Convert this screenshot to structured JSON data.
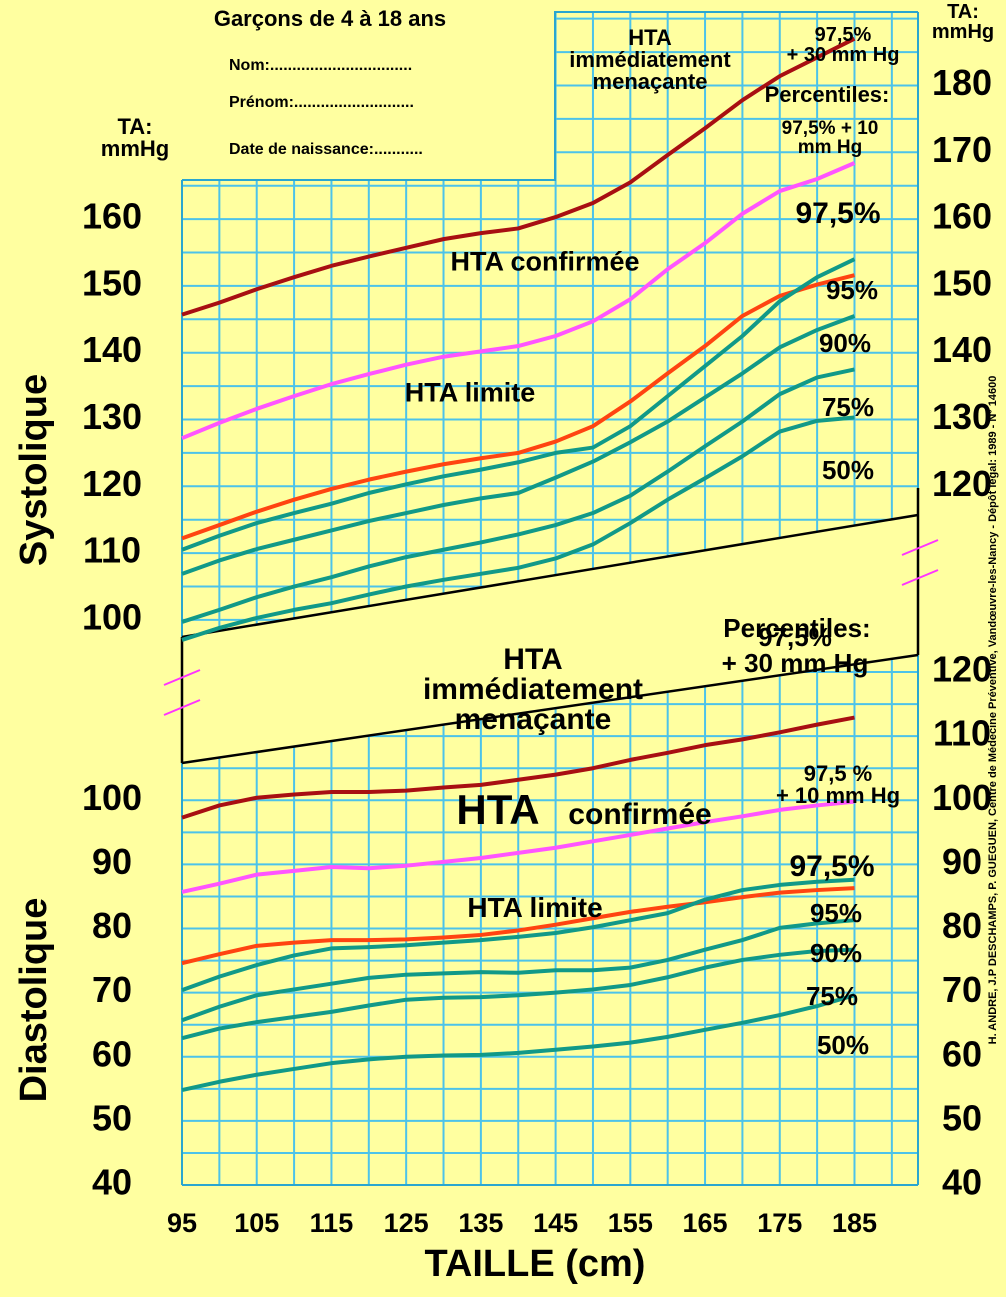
{
  "header": {
    "title": "Garçons de 4 à 18 ans",
    "fields": [
      "Nom:................................",
      "Prénom:...........................",
      "Date de naissance:..........."
    ]
  },
  "credit": "H. ANDRE, J.P DESCHAMPS, P. GUEGUEN, Centre de Médecine Préventive, Vandœuvre-les-Nancy - Dépôt légal: 1989 - N° 14600",
  "chart_data": [
    {
      "type": "line",
      "ylabel": "Systolique",
      "y_unit_label": "TA:\nmmHg",
      "y2_unit_label": "TA:\nmmHg",
      "legend_title": "Percentiles:",
      "annotations": [
        "HTA\nimmédiatement\nmenaçante",
        "HTA confirmée",
        "HTA limite"
      ],
      "x": [
        95,
        100,
        105,
        110,
        115,
        120,
        125,
        130,
        135,
        140,
        145,
        150,
        155,
        160,
        165,
        170,
        175,
        180,
        185
      ],
      "xlim": [
        95,
        193.5
      ],
      "xgrid": [
        95,
        100,
        105,
        110,
        115,
        120,
        125,
        130,
        135,
        140,
        145,
        150,
        155,
        160,
        165,
        170,
        175,
        180,
        185,
        190
      ],
      "ylim": [
        94,
        191
      ],
      "yticks": [
        100,
        110,
        120,
        130,
        140,
        150,
        160
      ],
      "y2lim": [
        94,
        191
      ],
      "y2ticks": [
        120,
        130,
        140,
        150,
        160,
        170,
        180
      ],
      "ygrid": [
        95,
        100,
        105,
        110,
        115,
        120,
        125,
        130,
        135,
        140,
        145,
        150,
        155,
        160,
        165,
        170,
        175,
        180,
        185,
        190
      ],
      "grid": true,
      "series": [
        {
          "name": "97,5%\n+ 30 mm Hg",
          "color": "#a80f12",
          "values": [
            145.7,
            147.5,
            149.5,
            151.3,
            153,
            154.4,
            155.7,
            157,
            157.9,
            158.6,
            160.3,
            162.4,
            165.5,
            169.6,
            173.6,
            177.8,
            181.4,
            184.2,
            187
          ]
        },
        {
          "name": "97,5% + 10\nmm Hg",
          "color": "#ff55ff",
          "values": [
            127.2,
            129.5,
            131.6,
            133.5,
            135.3,
            136.8,
            138.2,
            139.4,
            140.2,
            141,
            142.5,
            144.7,
            148,
            152.5,
            156.4,
            160.8,
            164.2,
            166,
            168.4
          ]
        },
        {
          "name": "97,5%",
          "color": "#ff4411",
          "values": [
            112.2,
            114.2,
            116.2,
            118,
            119.6,
            121,
            122.2,
            123.3,
            124.2,
            125,
            126.7,
            129,
            132.7,
            136.9,
            141,
            145.5,
            148.5,
            150.2,
            151.6
          ]
        },
        {
          "name": "95%",
          "color": "#119988",
          "values": [
            110.5,
            112.6,
            114.5,
            116,
            117.4,
            119,
            120.3,
            121.5,
            122.5,
            123.6,
            125,
            125.8,
            129,
            133.5,
            138,
            142.5,
            147.7,
            151.3,
            154
          ]
        },
        {
          "name": "90%",
          "color": "#119988",
          "values": [
            106.9,
            108.9,
            110.6,
            112,
            113.4,
            114.8,
            116,
            117.2,
            118.2,
            119,
            121.3,
            123.7,
            126.6,
            129.7,
            133.3,
            136.9,
            140.8,
            143.4,
            145.5
          ]
        },
        {
          "name": "75%",
          "color": "#119988",
          "values": [
            99.7,
            101.5,
            103.4,
            105,
            106.4,
            108,
            109.4,
            110.5,
            111.6,
            112.8,
            114.2,
            116,
            118.6,
            122.2,
            126,
            129.7,
            133.8,
            136.3,
            137.5
          ]
        },
        {
          "name": "50%",
          "color": "#119988",
          "values": [
            97,
            98.8,
            100.3,
            101.5,
            102.5,
            103.8,
            105,
            106,
            106.9,
            107.8,
            109.2,
            111.3,
            114.5,
            118,
            121.2,
            124.5,
            128.2,
            129.8,
            130.3
          ]
        }
      ]
    },
    {
      "type": "line",
      "ylabel": "Diastolique",
      "xlabel": "TAILLE (cm)",
      "legend_title": "Percentiles:",
      "annotations": [
        "HTA\nimmédiatement\nmenaçante",
        "HTA",
        "confirmée",
        "HTA limite"
      ],
      "x": [
        95,
        100,
        105,
        110,
        115,
        120,
        125,
        130,
        135,
        140,
        145,
        150,
        155,
        160,
        165,
        170,
        175,
        180,
        185
      ],
      "xlim": [
        95,
        193.5
      ],
      "xticks": [
        95,
        105,
        115,
        125,
        135,
        145,
        155,
        165,
        175,
        185
      ],
      "xgrid": [
        95,
        100,
        105,
        110,
        115,
        120,
        125,
        130,
        135,
        140,
        145,
        150,
        155,
        160,
        165,
        170,
        175,
        180,
        185,
        190
      ],
      "ylim": [
        40,
        125
      ],
      "yticks": [
        40,
        50,
        60,
        70,
        80,
        90,
        100
      ],
      "y2lim": [
        40,
        125
      ],
      "y2ticks": [
        40,
        50,
        60,
        70,
        80,
        90,
        100,
        110,
        120
      ],
      "ygrid": [
        40,
        45,
        50,
        55,
        60,
        65,
        70,
        75,
        80,
        85,
        90,
        95,
        100,
        105,
        110,
        115,
        120
      ],
      "grid": true,
      "series": [
        {
          "name": "97,5%\n+ 30 mm Hg",
          "color": "#a80f12",
          "values": [
            97.3,
            99.2,
            100.4,
            100.9,
            101.3,
            101.3,
            101.5,
            102,
            102.4,
            103.2,
            104,
            105,
            106.3,
            107.4,
            108.6,
            109.5,
            110.6,
            111.8,
            112.9
          ]
        },
        {
          "name": "97,5 %\n+ 10 mm Hg",
          "color": "#ff55ff",
          "values": [
            85.7,
            87,
            88.4,
            89,
            89.6,
            89.4,
            89.8,
            90.4,
            91,
            91.8,
            92.6,
            93.6,
            94.6,
            95.6,
            96.6,
            97.5,
            98.5,
            99.2,
            99.8
          ]
        },
        {
          "name": "97,5%",
          "color": "#ff4411",
          "values": [
            74.6,
            76,
            77.3,
            77.8,
            78.2,
            78.2,
            78.3,
            78.6,
            79,
            79.7,
            80.6,
            81.6,
            82.6,
            83.4,
            84.1,
            84.9,
            85.6,
            86,
            86.3
          ]
        },
        {
          "name": "95%",
          "color": "#119988",
          "values": [
            70.4,
            72.5,
            74.3,
            75.8,
            76.9,
            77.1,
            77.4,
            77.8,
            78.2,
            78.7,
            79.3,
            80.2,
            81.3,
            82.4,
            84.5,
            86,
            86.8,
            87.3,
            87.6
          ]
        },
        {
          "name": "90%",
          "color": "#119988",
          "values": [
            65.7,
            67.8,
            69.6,
            70.5,
            71.4,
            72.3,
            72.8,
            73,
            73.2,
            73.1,
            73.5,
            73.5,
            73.9,
            75.1,
            76.7,
            78.2,
            80.1,
            80.8,
            81.3
          ]
        },
        {
          "name": "75%",
          "color": "#119988",
          "values": [
            62.9,
            64.4,
            65.4,
            66.2,
            67,
            68,
            68.9,
            69.2,
            69.3,
            69.6,
            70,
            70.5,
            71.2,
            72.4,
            73.9,
            75.1,
            75.9,
            76.5,
            76.7
          ]
        },
        {
          "name": "50%",
          "color": "#119988",
          "values": [
            54.8,
            56.1,
            57.2,
            58.1,
            59,
            59.6,
            60,
            60.2,
            60.3,
            60.6,
            61.1,
            61.6,
            62.2,
            63.1,
            64.2,
            65.3,
            66.5,
            67.9,
            69.6
          ]
        }
      ]
    }
  ]
}
